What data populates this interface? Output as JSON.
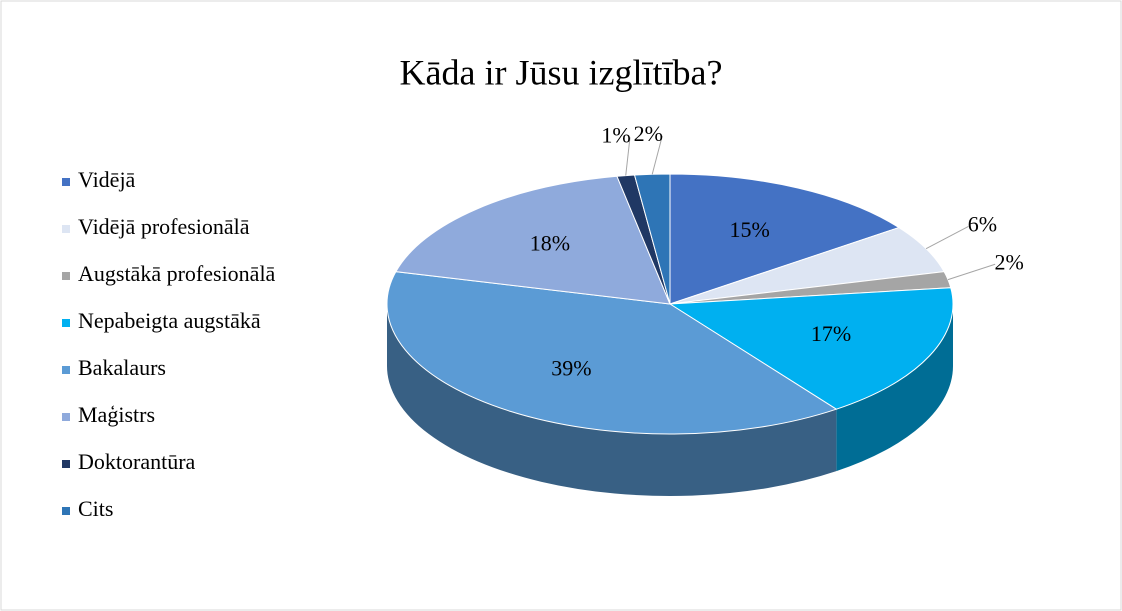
{
  "chart_data": {
    "type": "pie",
    "title": "Kāda ir Jūsu izglītība?",
    "categories": [
      "Vidējā",
      "Vidējā profesionālā",
      "Augstākā profesionālā",
      "Nepabeigta augstākā",
      "Bakalaurs",
      "Maģistrs",
      "Doktorantūra",
      "Cits"
    ],
    "values": [
      15,
      6,
      2,
      17,
      39,
      18,
      1,
      2
    ],
    "value_labels": [
      "15%",
      "6%",
      "2%",
      "17%",
      "39%",
      "18%",
      "1%",
      "2%"
    ],
    "colors": [
      "#4472c4",
      "#dde5f3",
      "#a5a5a5",
      "#00b0f0",
      "#5b9bd5",
      "#8faadc",
      "#203864",
      "#2e75b6"
    ],
    "legend": "left"
  }
}
